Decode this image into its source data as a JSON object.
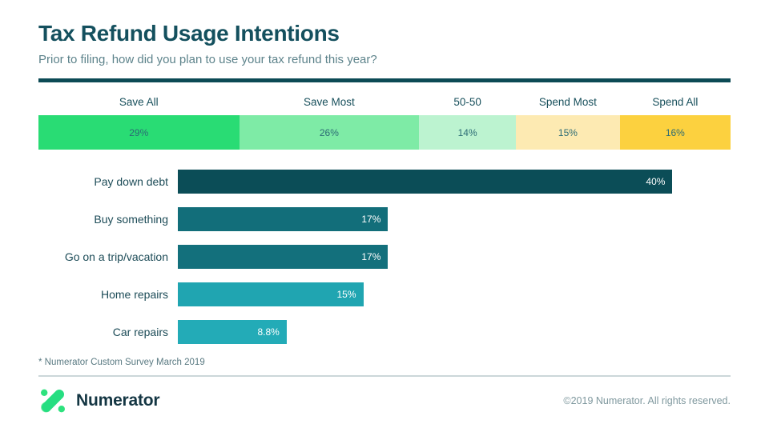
{
  "header": {
    "title": "Tax Refund Usage Intentions",
    "subtitle": "Prior to filing, how did you plan to use your tax refund this year?"
  },
  "chart_data": [
    {
      "type": "bar",
      "variant": "stacked-horizontal-100",
      "title": "",
      "categories": [
        "Save All",
        "Save Most",
        "50-50",
        "Spend Most",
        "Spend All"
      ],
      "values": [
        29,
        26,
        14,
        15,
        16
      ],
      "labels": [
        "29%",
        "26%",
        "14%",
        "15%",
        "16%"
      ],
      "colors": [
        "#29dc74",
        "#7eeba6",
        "#bcf3d0",
        "#fdeab2",
        "#fcd13f"
      ],
      "legend_position": "above-segments",
      "value_label_position": "center"
    },
    {
      "type": "bar",
      "variant": "horizontal",
      "title": "",
      "categories": [
        "Pay down debt",
        "Buy something",
        "Go on a trip/vacation",
        "Home repairs",
        "Car repairs"
      ],
      "values": [
        40,
        17,
        17,
        15,
        8.8
      ],
      "labels": [
        "40%",
        "17%",
        "17%",
        "15%",
        "8.8%"
      ],
      "colors": [
        "#0b4d57",
        "#126e7a",
        "#13707c",
        "#20a5b1",
        "#23abb7"
      ],
      "xlim": [
        0,
        44.7
      ],
      "grid": false,
      "value_label_position": "inside-end"
    }
  ],
  "footnote": "* Numerator Custom Survey March 2019",
  "footer": {
    "brand": "Numerator",
    "copyright": "©2019 Numerator. All rights reserved."
  },
  "colors": {
    "title": "#14505e",
    "subtitle": "#5d838b",
    "top_rule": "#0c4a55",
    "divider": "#ccd7d9",
    "logo_green_bright": "#26de81",
    "logo_green_light": "#8aeeb0"
  }
}
